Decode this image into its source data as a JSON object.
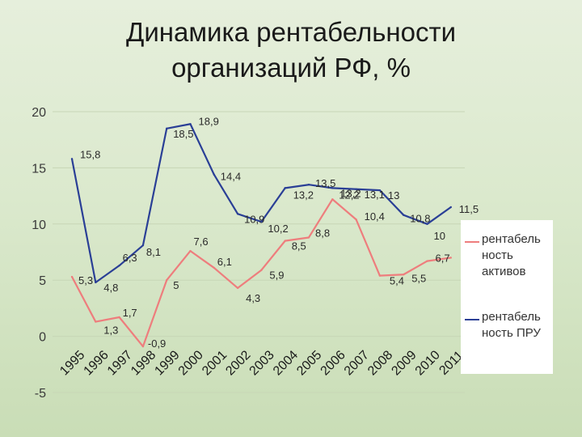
{
  "title": {
    "line1": "Динамика рентабельности",
    "line2": "организаций РФ, %"
  },
  "legend": {
    "items": [
      {
        "label_lines": [
          "рентабель",
          "ность",
          "активов"
        ],
        "color": "#ee7d7d"
      },
      {
        "label_lines": [
          "рентабель",
          "ность ПРУ"
        ],
        "color": "#2a3f96"
      }
    ]
  },
  "chart_data": {
    "type": "line",
    "title": "Динамика рентабельности организаций РФ, %",
    "x": [
      "1995",
      "1996",
      "1997",
      "1998",
      "1999",
      "2000",
      "2001",
      "2002",
      "2003",
      "2004",
      "2005",
      "2006",
      "2007",
      "2008",
      "2009",
      "2010",
      "2011"
    ],
    "ylim": [
      -5,
      20
    ],
    "yticks": [
      "-5",
      "0",
      "5",
      "10",
      "15",
      "20"
    ],
    "grid": "horizontal",
    "legend_position": "right",
    "series": [
      {
        "name": "рентабельность активов",
        "color": "#ee7d7d",
        "values": [
          5.3,
          1.3,
          1.7,
          -0.9,
          5,
          7.6,
          6.1,
          4.3,
          5.9,
          8.5,
          8.8,
          12.2,
          10.4,
          5.4,
          5.5,
          6.7,
          7.0
        ],
        "labels": [
          "5,3",
          "1,3",
          "1,7",
          "-0,9",
          "5",
          "7,6",
          "6,1",
          "4,3",
          "5,9",
          "8,5",
          "8,8",
          "12,2",
          "10,4",
          "5,4",
          "5,5",
          "6,7",
          ""
        ]
      },
      {
        "name": "рентабельность ПРУ",
        "color": "#2a3f96",
        "values": [
          15.8,
          4.8,
          6.3,
          8.1,
          18.5,
          18.9,
          14.4,
          10.9,
          10.2,
          13.2,
          13.5,
          13.2,
          13.1,
          13,
          10.8,
          10,
          11.5
        ],
        "labels": [
          "15,8",
          "4,8",
          "6,3",
          "8,1",
          "18,5",
          "18,9",
          "14,4",
          "10,9",
          "10,2",
          "13,2",
          "13,5",
          "13,2",
          "13,1",
          "13",
          "10,8",
          "10",
          "11,5"
        ]
      }
    ]
  }
}
